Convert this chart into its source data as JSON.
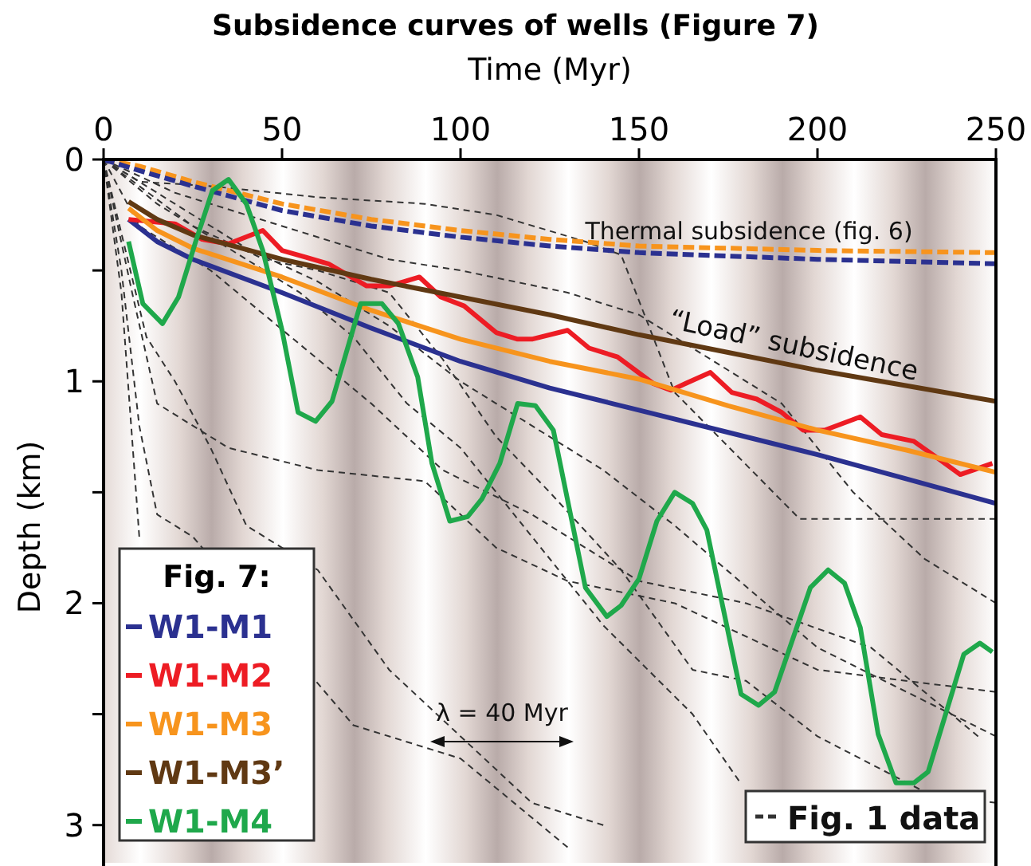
{
  "chart_data": {
    "type": "line",
    "title": "Subsidence curves of wells (Figure 7)",
    "xlabel": "Time (Myr)",
    "ylabel": "Depth (km)",
    "legend_title": "Fig. 7:",
    "legend": "bottom left",
    "xlim": [
      0,
      250
    ],
    "xticks": [
      0,
      50,
      100,
      150,
      200,
      250
    ],
    "ylim": [
      3.17,
      0
    ],
    "yticks": [
      0,
      {
        "value": 0.5,
        "label": null
      },
      1,
      {
        "value": 1.5,
        "label": null
      },
      2,
      {
        "value": 2.5,
        "label": null
      },
      3
    ],
    "annotations": [
      "Thermal subsidence (fig. 6)",
      "“Load” subsidence",
      "λ = 40 Myr"
    ],
    "series": [
      {
        "name": "Fig. 1 data",
        "color": "#333333",
        "line_style": "dashed",
        "x": [
          0,
          10,
          30,
          60,
          90,
          110,
          135,
          145,
          160,
          195,
          250
        ],
        "values": [
          0,
          0.1,
          0.12,
          0.17,
          0.2,
          0.25,
          0.37,
          0.43,
          1.05,
          1.62,
          1.62
        ]
      },
      {
        "color": "#333333",
        "line_style": "dashed",
        "x": [
          0,
          20,
          40,
          60,
          80,
          100,
          120,
          140,
          160,
          200,
          250
        ],
        "values": [
          0,
          0.2,
          0.4,
          0.55,
          0.75,
          1.0,
          1.2,
          1.4,
          1.65,
          2.2,
          2.6
        ]
      },
      {
        "color": "#333333",
        "line_style": "dashed",
        "x": [
          0,
          5,
          10,
          15,
          25,
          70,
          100,
          130
        ],
        "values": [
          0,
          0.5,
          1.2,
          1.6,
          1.7,
          2.55,
          2.7,
          3.1
        ]
      },
      {
        "color": "#333333",
        "line_style": "dashed",
        "x": [
          0,
          8,
          15,
          35,
          60,
          90,
          110,
          130,
          160,
          200,
          250
        ],
        "values": [
          0,
          0.6,
          1.1,
          1.3,
          1.4,
          1.45,
          1.75,
          1.9,
          2.0,
          2.3,
          2.4
        ]
      },
      {
        "color": "#333333",
        "line_style": "dashed",
        "x": [
          0,
          10,
          30,
          45,
          60,
          75,
          95,
          120,
          150,
          180,
          215,
          245
        ],
        "values": [
          0,
          0.3,
          0.5,
          0.7,
          0.9,
          1.1,
          1.4,
          1.6,
          1.9,
          2.0,
          2.2,
          2.6
        ]
      },
      {
        "color": "#333333",
        "line_style": "dashed",
        "x": [
          0,
          15,
          30,
          55,
          70,
          85,
          100,
          115,
          140,
          165,
          178
        ],
        "values": [
          0,
          0.2,
          0.35,
          0.6,
          0.8,
          1.1,
          1.3,
          1.6,
          2.1,
          2.5,
          2.8
        ]
      },
      {
        "color": "#333333",
        "line_style": "dashed",
        "x": [
          0,
          20,
          50,
          80,
          100,
          130,
          150,
          170,
          190,
          210,
          230,
          250
        ],
        "values": [
          0,
          0.15,
          0.3,
          0.45,
          0.5,
          0.6,
          0.7,
          0.9,
          1.1,
          1.5,
          1.8,
          2.0
        ]
      },
      {
        "color": "#333333",
        "line_style": "dashed",
        "x": [
          0,
          5,
          10
        ],
        "values": [
          0,
          0.6,
          1.7
        ]
      },
      {
        "color": "#333333",
        "line_style": "dashed",
        "x": [
          0,
          12,
          20,
          30,
          40,
          60,
          80,
          100,
          120,
          140
        ],
        "values": [
          0,
          0.8,
          1.0,
          1.3,
          1.65,
          1.85,
          2.3,
          2.6,
          2.9,
          3.0
        ]
      },
      {
        "color": "#333333",
        "line_style": "dashed",
        "x": [
          0,
          25,
          45,
          60,
          80,
          95,
          110,
          125,
          145,
          165,
          180,
          200,
          230,
          250
        ],
        "values": [
          0,
          0.3,
          0.45,
          0.5,
          0.6,
          0.9,
          1.25,
          1.5,
          1.85,
          2.3,
          2.35,
          2.6,
          2.85,
          2.9
        ]
      },
      {
        "color": "#f7941d",
        "line_style": "dashed",
        "x": [
          0,
          10,
          25,
          50,
          75,
          100,
          125,
          150,
          200,
          250
        ],
        "values": [
          0,
          0.03,
          0.1,
          0.2,
          0.27,
          0.32,
          0.36,
          0.39,
          0.41,
          0.42
        ]
      },
      {
        "color": "#2b3190",
        "line_style": "dashed",
        "x": [
          0,
          10,
          25,
          50,
          75,
          100,
          125,
          150,
          200,
          250
        ],
        "values": [
          0,
          0.05,
          0.12,
          0.23,
          0.3,
          0.35,
          0.39,
          0.42,
          0.45,
          0.47
        ]
      },
      {
        "name": "W1-M1",
        "color": "#2b3190",
        "x": [
          7,
          15,
          25,
          50,
          75,
          100,
          125,
          150,
          175,
          200,
          225,
          250
        ],
        "values": [
          0.27,
          0.37,
          0.45,
          0.6,
          0.76,
          0.91,
          1.03,
          1.13,
          1.23,
          1.33,
          1.44,
          1.55
        ]
      },
      {
        "name": "W1-M2",
        "color": "#ed1c24",
        "x": [
          7,
          20,
          27.6,
          35,
          44.6,
          50,
          56.5,
          63,
          73.7,
          80,
          88.5,
          94.5,
          101,
          110,
          116,
          120,
          130,
          136,
          144,
          154,
          159,
          163,
          170,
          176,
          183,
          190,
          196,
          202,
          212,
          218,
          227,
          234,
          240,
          249
        ],
        "values": [
          0.27,
          0.29,
          0.36,
          0.38,
          0.32,
          0.41,
          0.44,
          0.47,
          0.57,
          0.57,
          0.53,
          0.62,
          0.66,
          0.78,
          0.81,
          0.81,
          0.77,
          0.85,
          0.89,
          1.01,
          1.04,
          1.01,
          0.96,
          1.05,
          1.08,
          1.14,
          1.22,
          1.22,
          1.16,
          1.24,
          1.27,
          1.35,
          1.42,
          1.37
        ]
      },
      {
        "name": "W1-M3",
        "color": "#f7941d",
        "x": [
          7,
          15,
          25,
          50,
          75,
          100,
          125,
          150,
          175,
          200,
          225,
          250
        ],
        "values": [
          0.22,
          0.32,
          0.4,
          0.53,
          0.68,
          0.81,
          0.91,
          0.99,
          1.11,
          1.22,
          1.31,
          1.41
        ]
      },
      {
        "name": "W1-M3’",
        "color": "#603913",
        "x": [
          7,
          15,
          25,
          50,
          75,
          100,
          125,
          150,
          175,
          200,
          225,
          250
        ],
        "values": [
          0.19,
          0.27,
          0.34,
          0.45,
          0.54,
          0.62,
          0.7,
          0.79,
          0.87,
          0.95,
          1.02,
          1.09
        ]
      },
      {
        "name": "W1-M4",
        "color": "#1fa84b",
        "x": [
          7,
          11,
          16.5,
          21,
          26,
          30.5,
          35,
          40,
          44.6,
          50,
          54.5,
          59.4,
          64,
          72,
          78,
          82.6,
          88,
          92,
          97,
          102,
          106,
          111,
          116,
          121,
          126,
          135,
          141,
          145,
          150,
          155,
          160,
          165,
          169,
          178.6,
          183.5,
          188,
          198,
          203,
          207.6,
          212,
          217,
          222,
          227,
          231,
          241,
          245.5,
          249
        ],
        "values": [
          0.37,
          0.65,
          0.74,
          0.62,
          0.36,
          0.14,
          0.09,
          0.2,
          0.41,
          0.77,
          1.14,
          1.18,
          1.09,
          0.65,
          0.65,
          0.74,
          0.98,
          1.37,
          1.63,
          1.61,
          1.53,
          1.37,
          1.1,
          1.11,
          1.22,
          1.93,
          2.06,
          2.01,
          1.89,
          1.63,
          1.5,
          1.55,
          1.67,
          2.41,
          2.46,
          2.4,
          1.93,
          1.85,
          1.91,
          2.11,
          2.59,
          2.81,
          2.81,
          2.76,
          2.23,
          2.18,
          2.22
        ]
      }
    ]
  }
}
